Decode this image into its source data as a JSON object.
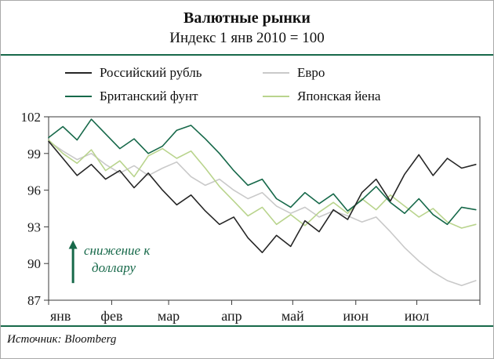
{
  "header": {
    "title": "Валютные рынки",
    "subtitle": "Индекс 1 янв 2010 = 100"
  },
  "legend": [
    {
      "label": "Российский рубль",
      "color": "#262626"
    },
    {
      "label": "Евро",
      "color": "#c9c9c9"
    },
    {
      "label": "Британский фунт",
      "color": "#17694a"
    },
    {
      "label": "Японская йена",
      "color": "#b9d48d"
    }
  ],
  "annotation": {
    "line1": "снижение к",
    "line2": "доллару",
    "color": "#17694a",
    "arrow_day": 12,
    "arrow_from_value": 88.4,
    "arrow_to_value": 91.9
  },
  "source": {
    "label": "Источник: Bloomberg"
  },
  "colors": {
    "accent_green": "#17694a",
    "axis": "#3a3a3a",
    "ruble": "#262626",
    "euro": "#c9c9c9",
    "pound": "#17694a",
    "yen": "#b9d48d"
  },
  "chart_data": {
    "type": "line",
    "title": "Валютные рынки",
    "subtitle": "Индекс 1 янв 2010 = 100",
    "xlabel": "",
    "ylabel": "",
    "grid": false,
    "legend_position": "top",
    "ylim": [
      87,
      102
    ],
    "y_ticks": [
      87,
      90,
      93,
      96,
      99,
      102
    ],
    "x_range_days": [
      0,
      212
    ],
    "x_tick_days": [
      0,
      31,
      59,
      90,
      120,
      151,
      181
    ],
    "x_tick_labels": [
      "янв",
      "фев",
      "мар",
      "апр",
      "май",
      "июн",
      "июл"
    ],
    "x_days": [
      0,
      7,
      14,
      21,
      28,
      35,
      42,
      49,
      56,
      63,
      70,
      77,
      84,
      91,
      98,
      105,
      112,
      119,
      126,
      133,
      140,
      147,
      154,
      161,
      168,
      175,
      182,
      189,
      196,
      203,
      210
    ],
    "series": [
      {
        "name": "Евро",
        "color": "#c9c9c9",
        "values": [
          100.0,
          99.2,
          98.5,
          99.0,
          98.1,
          97.4,
          98.0,
          97.2,
          97.8,
          98.3,
          97.1,
          96.4,
          96.9,
          96.0,
          95.3,
          95.8,
          94.7,
          94.1,
          94.6,
          93.8,
          94.3,
          93.9,
          93.4,
          93.8,
          92.6,
          91.3,
          90.2,
          89.3,
          88.6,
          88.2,
          88.6
        ]
      },
      {
        "name": "Японская йена",
        "color": "#b9d48d",
        "values": [
          100.1,
          99.0,
          98.2,
          99.3,
          97.6,
          98.4,
          97.1,
          98.8,
          99.4,
          98.6,
          99.2,
          97.8,
          96.3,
          95.1,
          93.9,
          94.6,
          93.2,
          94.0,
          93.1,
          94.2,
          95.0,
          94.1,
          95.3,
          94.4,
          95.6,
          94.7,
          93.8,
          94.5,
          93.4,
          92.9,
          93.2
        ]
      },
      {
        "name": "Британский фунт",
        "color": "#17694a",
        "values": [
          100.3,
          101.2,
          100.1,
          101.8,
          100.6,
          99.4,
          100.2,
          99.0,
          99.6,
          100.9,
          101.3,
          100.2,
          99.0,
          97.6,
          96.4,
          96.9,
          95.3,
          94.6,
          95.8,
          94.9,
          95.7,
          94.3,
          95.2,
          96.3,
          95.0,
          94.1,
          95.3,
          94.0,
          93.2,
          94.6,
          94.4
        ]
      },
      {
        "name": "Российский рубль",
        "color": "#262626",
        "values": [
          100.0,
          98.6,
          97.2,
          98.1,
          96.9,
          97.6,
          96.2,
          97.4,
          96.0,
          94.8,
          95.6,
          94.3,
          93.2,
          93.8,
          92.1,
          90.9,
          92.3,
          91.4,
          93.5,
          92.6,
          94.4,
          93.6,
          95.8,
          96.9,
          95.1,
          97.3,
          98.9,
          97.2,
          98.6,
          97.8,
          98.1
        ]
      }
    ]
  }
}
